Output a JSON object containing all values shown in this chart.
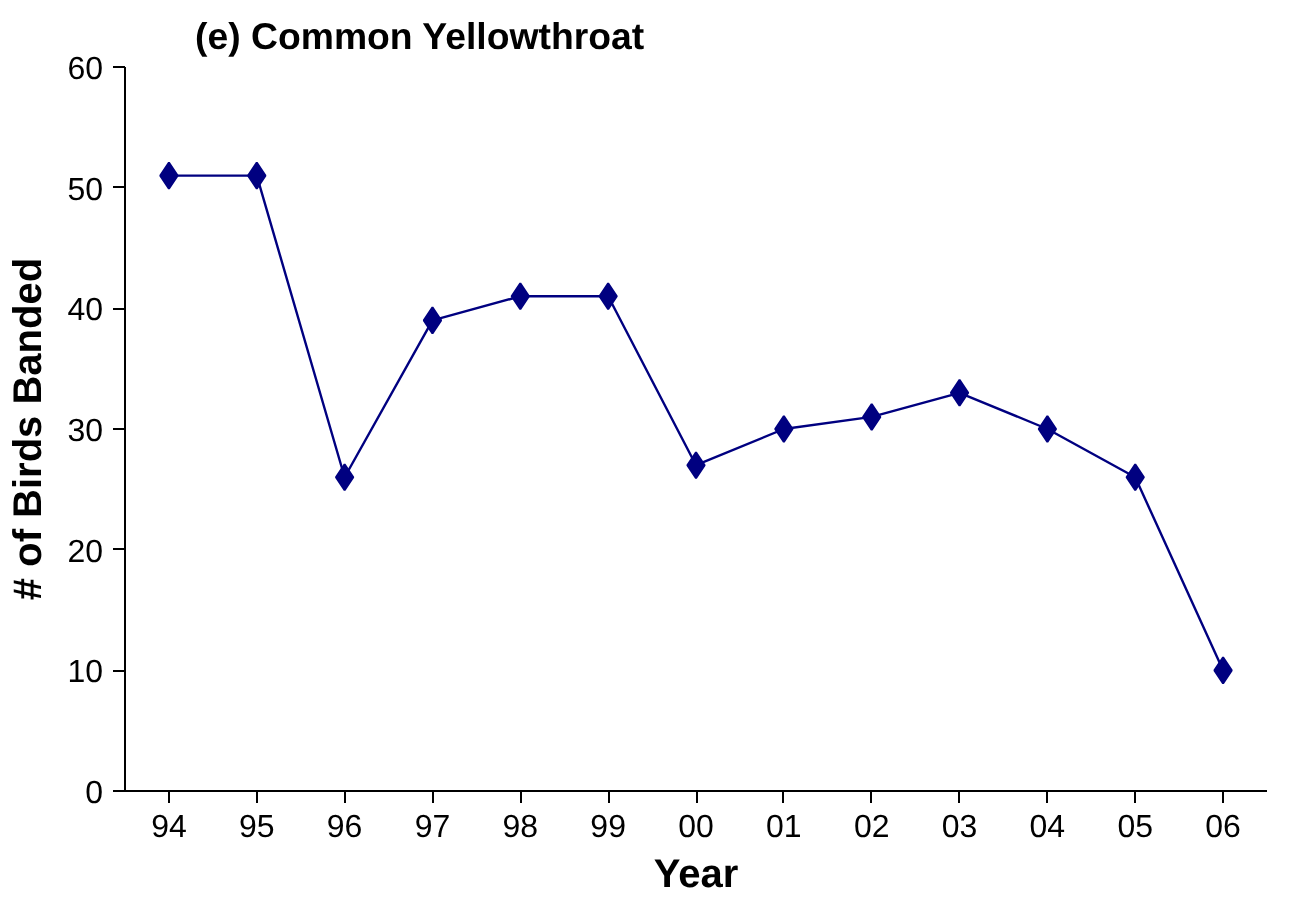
{
  "chart_data": {
    "type": "line",
    "title": "(e) Common Yellowthroat",
    "xlabel": "Year",
    "ylabel": "# of Birds Banded",
    "categories": [
      "94",
      "95",
      "96",
      "97",
      "98",
      "99",
      "00",
      "01",
      "02",
      "03",
      "04",
      "05",
      "06"
    ],
    "series": [
      {
        "color": "#000080",
        "values": [
          51,
          51,
          26,
          39,
          41,
          41,
          27,
          30,
          31,
          33,
          30,
          26,
          10
        ]
      }
    ],
    "ylim": [
      0,
      60
    ],
    "yticks": [
      0,
      10,
      20,
      30,
      40,
      50,
      60
    ],
    "grid": false,
    "marker": "diamond",
    "line_style": "solid"
  }
}
